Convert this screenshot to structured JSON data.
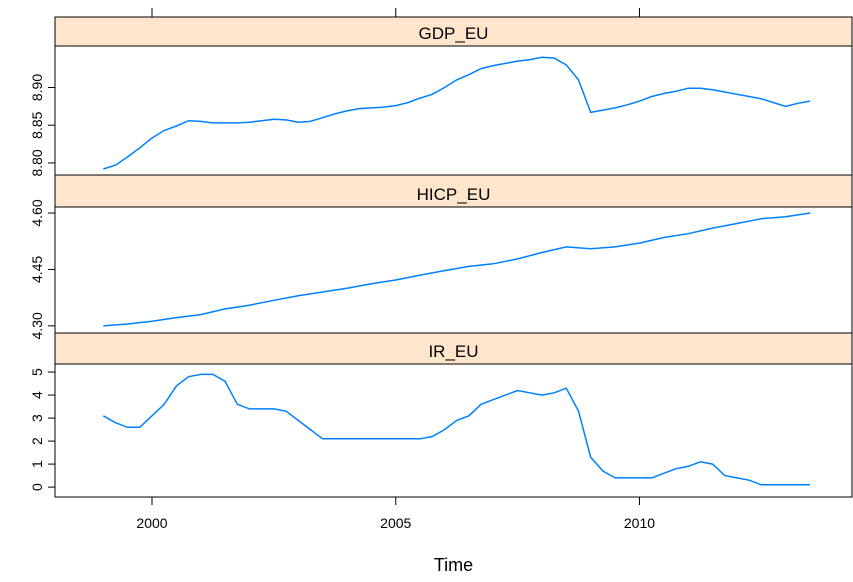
{
  "chart_data": [
    {
      "type": "line",
      "title": "GDP_EU",
      "color": "#0080ff",
      "x": [
        1999,
        1999.25,
        1999.5,
        1999.75,
        2000,
        2000.25,
        2000.5,
        2000.75,
        2001,
        2001.25,
        2001.5,
        2001.75,
        2002,
        2002.25,
        2002.5,
        2002.75,
        2003,
        2003.25,
        2003.5,
        2003.75,
        2004,
        2004.25,
        2004.5,
        2004.75,
        2005,
        2005.25,
        2005.5,
        2005.75,
        2006,
        2006.25,
        2006.5,
        2006.75,
        2007,
        2007.25,
        2007.5,
        2007.75,
        2008,
        2008.25,
        2008.5,
        2008.75,
        2009,
        2009.25,
        2009.5,
        2009.75,
        2010,
        2010.25,
        2010.5,
        2010.75,
        2011,
        2011.25,
        2011.5,
        2011.75,
        2012,
        2012.25,
        2012.5,
        2012.75,
        2013,
        2013.25,
        2013.5
      ],
      "values": [
        8.792,
        8.797,
        8.808,
        8.82,
        8.833,
        8.843,
        8.849,
        8.856,
        8.855,
        8.853,
        8.853,
        8.853,
        8.854,
        8.856,
        8.858,
        8.857,
        8.854,
        8.855,
        8.86,
        8.865,
        8.869,
        8.872,
        8.873,
        8.874,
        8.876,
        8.88,
        8.886,
        8.891,
        8.9,
        8.91,
        8.917,
        8.925,
        8.929,
        8.932,
        8.935,
        8.937,
        8.94,
        8.939,
        8.93,
        8.91,
        8.867,
        8.87,
        8.873,
        8.877,
        8.882,
        8.888,
        8.892,
        8.895,
        8.899,
        8.899,
        8.897,
        8.894,
        8.891,
        8.888,
        8.885,
        8.88,
        8.875,
        8.879,
        8.882
      ],
      "ylim": [
        8.784,
        8.955
      ],
      "yticks": [
        {
          "value": 8.8,
          "label": "8.80"
        },
        8.85,
        {
          "value": 8.9,
          "label": "8.90"
        }
      ]
    },
    {
      "type": "line",
      "title": "HICP_EU",
      "color": "#0080ff",
      "x": [
        1999,
        1999.5,
        2000,
        2000.5,
        2001,
        2001.5,
        2002,
        2002.5,
        2003,
        2003.5,
        2004,
        2004.5,
        2005,
        2005.5,
        2006,
        2006.5,
        2007,
        2007.5,
        2008,
        2008.5,
        2009,
        2009.5,
        2010,
        2010.5,
        2011,
        2011.5,
        2012,
        2012.5,
        2013,
        2013.5
      ],
      "values": [
        4.3,
        4.305,
        4.312,
        4.322,
        4.33,
        4.345,
        4.355,
        4.368,
        4.38,
        4.39,
        4.4,
        4.412,
        4.422,
        4.435,
        4.447,
        4.458,
        4.465,
        4.478,
        4.495,
        4.51,
        4.505,
        4.51,
        4.52,
        4.535,
        4.545,
        4.56,
        4.572,
        4.585,
        4.59,
        4.6
      ],
      "ylim": [
        4.281,
        4.616
      ],
      "yticks": [
        {
          "value": 4.3,
          "label": "4.30"
        },
        4.45,
        {
          "value": 4.6,
          "label": "4.60"
        }
      ]
    },
    {
      "type": "line",
      "title": "IR_EU",
      "color": "#0080ff",
      "x": [
        1999,
        1999.25,
        1999.5,
        1999.75,
        2000,
        2000.25,
        2000.5,
        2000.75,
        2001,
        2001.25,
        2001.5,
        2001.75,
        2002,
        2002.25,
        2002.5,
        2002.75,
        2003,
        2003.25,
        2003.5,
        2003.75,
        2004,
        2004.25,
        2004.5,
        2004.75,
        2005,
        2005.25,
        2005.5,
        2005.75,
        2006,
        2006.25,
        2006.5,
        2006.75,
        2007,
        2007.25,
        2007.5,
        2007.75,
        2008,
        2008.25,
        2008.5,
        2008.75,
        2009,
        2009.25,
        2009.5,
        2009.75,
        2010,
        2010.25,
        2010.5,
        2010.75,
        2011,
        2011.25,
        2011.5,
        2011.75,
        2012,
        2012.25,
        2012.5,
        2012.75,
        2013,
        2013.25,
        2013.5
      ],
      "values": [
        3.1,
        2.8,
        2.6,
        2.6,
        3.1,
        3.6,
        4.4,
        4.8,
        4.9,
        4.9,
        4.6,
        3.6,
        3.4,
        3.4,
        3.4,
        3.3,
        2.9,
        2.5,
        2.1,
        2.1,
        2.1,
        2.1,
        2.1,
        2.1,
        2.1,
        2.1,
        2.1,
        2.2,
        2.5,
        2.9,
        3.1,
        3.6,
        3.8,
        4.0,
        4.2,
        4.1,
        4.0,
        4.1,
        4.3,
        3.3,
        1.3,
        0.7,
        0.4,
        0.4,
        0.4,
        0.4,
        0.6,
        0.8,
        0.9,
        1.1,
        1.0,
        0.5,
        0.4,
        0.3,
        0.1,
        0.1,
        0.1,
        0.1,
        0.1
      ],
      "ylim": [
        -0.43,
        5.35
      ],
      "yticks": [
        0,
        1,
        2,
        3,
        4,
        5
      ],
      "xlim": [
        1998.01,
        2014.36
      ],
      "xticks": [
        2000,
        2005,
        2010
      ],
      "xlabel": "Time"
    }
  ]
}
